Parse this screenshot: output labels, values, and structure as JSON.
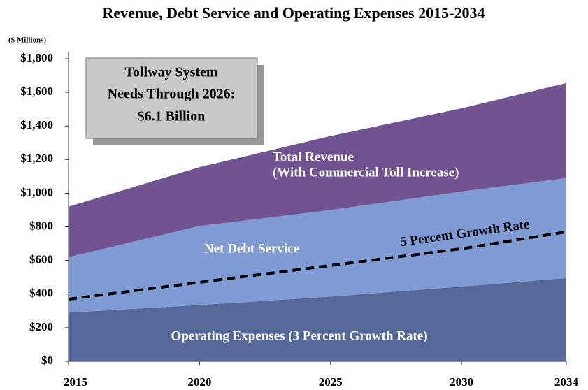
{
  "chart_data": {
    "type": "area",
    "stacked": true,
    "title": "Revenue, Debt Service and Operating Expenses 2015-2034",
    "y_label": "($ Millions)",
    "x": [
      2015,
      2020,
      2025,
      2030,
      2034
    ],
    "xlim": [
      2015,
      2034
    ],
    "xticks": [
      2015,
      2020,
      2025,
      2030,
      2034
    ],
    "ylim": [
      0,
      1800
    ],
    "yticks": [
      {
        "value": 0,
        "label": "$0"
      },
      {
        "value": 200,
        "label": "$200"
      },
      {
        "value": 400,
        "label": "$400"
      },
      {
        "value": 600,
        "label": "$600"
      },
      {
        "value": 800,
        "label": "$800"
      },
      {
        "value": 1000,
        "label": "$1,000"
      },
      {
        "value": 1200,
        "label": "$1,200"
      },
      {
        "value": 1400,
        "label": "$1,400"
      },
      {
        "value": 1600,
        "label": "$1,600"
      },
      {
        "value": 1800,
        "label": "$1,800"
      }
    ],
    "series": [
      {
        "name": "Operating Expenses (3 Percent Growth Rate)",
        "color": "#56689a",
        "values": [
          290,
          335,
          385,
          445,
          495
        ]
      },
      {
        "name": "Net Debt Service",
        "color": "#7f9bd3",
        "values": [
          330,
          470,
          515,
          565,
          595
        ]
      },
      {
        "name": "Total Revenue",
        "color": "#715391",
        "values": [
          300,
          350,
          440,
          495,
          565
        ]
      },
      {
        "name": "5 Percent Growth Rate",
        "type": "line",
        "dashed": true,
        "color": "#000000",
        "values": [
          370,
          470,
          570,
          670,
          770
        ]
      }
    ],
    "annotations": [
      "(With Commercial Toll Increase)",
      "Tollway System",
      "Needs Through 2026:",
      "$6.1 Billion"
    ]
  }
}
